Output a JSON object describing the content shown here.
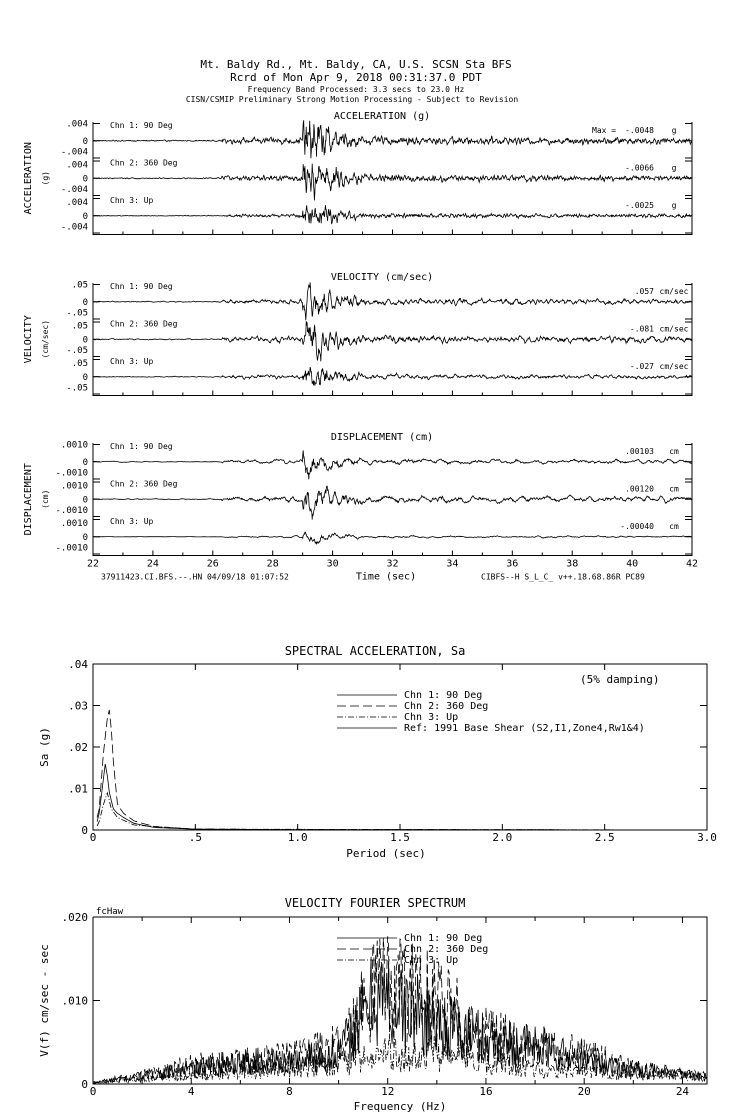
{
  "header": {
    "line1": "Mt. Baldy Rd., Mt. Baldy, CA, U.S.     SCSN Sta BFS",
    "line2": "Rcrd of Mon Apr  9, 2018 00:31:37.0 PDT",
    "line3": "Frequency Band Processed: 3.3 secs to 23.0 Hz",
    "line4": "CISN/CSMIP Preliminary Strong Motion Processing - Subject to Revision"
  },
  "chart_data": [
    {
      "type": "line",
      "title": "ACCELERATION (g)",
      "ylabel": "ACCELERATION",
      "yunit": "(g)",
      "yticks": [
        ".004",
        "0",
        "-.004"
      ],
      "ytick_value": 0.004,
      "unit": "g",
      "max_prefix": "Max =",
      "smooth": 1,
      "channels": [
        {
          "label": "Chn 1: 90 Deg",
          "max": "-.0048",
          "peak": -0.0048
        },
        {
          "label": "Chn 2: 360 Deg",
          "max": "-.0066",
          "peak": -0.0066
        },
        {
          "label": "Chn 3: Up",
          "max": "-.0025",
          "peak": -0.0025
        }
      ]
    },
    {
      "type": "line",
      "title": "VELOCITY (cm/sec)",
      "ylabel": "VELOCITY",
      "yunit": "(cm/sec)",
      "yticks": [
        ".05",
        "0",
        "-.05"
      ],
      "ytick_value": 0.05,
      "unit": "cm/sec",
      "smooth": 2,
      "channels": [
        {
          "label": "Chn 1: 90 Deg",
          "max": ".057",
          "peak": 0.057
        },
        {
          "label": "Chn 2: 360 Deg",
          "max": "-.081",
          "peak": -0.081
        },
        {
          "label": "Chn 3: Up",
          "max": "-.027",
          "peak": -0.027
        }
      ]
    },
    {
      "type": "line",
      "title": "DISPLACEMENT (cm)",
      "ylabel": "DISPLACEMENT",
      "yunit": "(cm)",
      "yticks": [
        ".0010",
        "0",
        "-.0010"
      ],
      "ytick_value": 0.001,
      "unit": "cm",
      "smooth": 5,
      "channels": [
        {
          "label": "Chn 1: 90 Deg",
          "max": ".00103",
          "peak": 0.00103
        },
        {
          "label": "Chn 2: 360 Deg",
          "max": ".00120",
          "peak": 0.0012
        },
        {
          "label": "Chn 3: Up",
          "max": "-.00040",
          "peak": -0.0004
        }
      ],
      "xlim": [
        22,
        42
      ],
      "xticks": [
        "22",
        "24",
        "26",
        "28",
        "30",
        "32",
        "34",
        "36",
        "38",
        "40",
        "42"
      ],
      "xlabel": "Time (sec)",
      "footer_left": "37911423.CI.BFS.--.HN 04/09/18 01:07:52",
      "footer_right": "CIBFS--H  S_L_C_  v++.18.68.86R PC89"
    },
    {
      "type": "line",
      "title": "SPECTRAL ACCELERATION, Sa",
      "note": "(5% damping)",
      "xlabel": "Period (sec)",
      "ylabel": "Sa (g)",
      "xlim": [
        0,
        3.0
      ],
      "ylim": [
        0,
        0.04
      ],
      "xticks": [
        "0",
        ".5",
        "1.0",
        "1.5",
        "2.0",
        "2.5",
        "3.0"
      ],
      "yticks": [
        ".04",
        ".03",
        ".02",
        ".01",
        "0"
      ],
      "legend_position": "top-center",
      "series": [
        {
          "name": "Chn 1: 90 Deg",
          "style": "solid",
          "points": [
            [
              0.02,
              0.002
            ],
            [
              0.03,
              0.004
            ],
            [
              0.05,
              0.012
            ],
            [
              0.06,
              0.016
            ],
            [
              0.07,
              0.013
            ],
            [
              0.08,
              0.009
            ],
            [
              0.1,
              0.005
            ],
            [
              0.12,
              0.004
            ],
            [
              0.15,
              0.003
            ],
            [
              0.2,
              0.0016
            ],
            [
              0.3,
              0.0006
            ],
            [
              0.5,
              0.0002
            ],
            [
              1.0,
              0.0001
            ],
            [
              3.0,
              0.0
            ]
          ]
        },
        {
          "name": "Chn 2: 360 Deg",
          "style": "dashed",
          "points": [
            [
              0.02,
              0.003
            ],
            [
              0.03,
              0.005
            ],
            [
              0.05,
              0.018
            ],
            [
              0.07,
              0.027
            ],
            [
              0.08,
              0.029
            ],
            [
              0.09,
              0.024
            ],
            [
              0.1,
              0.016
            ],
            [
              0.12,
              0.006
            ],
            [
              0.15,
              0.004
            ],
            [
              0.2,
              0.0022
            ],
            [
              0.3,
              0.0008
            ],
            [
              0.5,
              0.0002
            ],
            [
              1.0,
              0.0001
            ],
            [
              3.0,
              0.0
            ]
          ]
        },
        {
          "name": "Chn 3: Up",
          "style": "dashdot",
          "points": [
            [
              0.02,
              0.001
            ],
            [
              0.03,
              0.002
            ],
            [
              0.05,
              0.006
            ],
            [
              0.07,
              0.009
            ],
            [
              0.09,
              0.005
            ],
            [
              0.12,
              0.003
            ],
            [
              0.2,
              0.0012
            ],
            [
              0.5,
              0.0002
            ],
            [
              3.0,
              0.0
            ]
          ]
        },
        {
          "name": "Ref: 1991 Base Shear (S2,I1,Zone4,Rw1&4)",
          "style": "solid",
          "points": []
        }
      ]
    },
    {
      "type": "line",
      "title": "VELOCITY FOURIER SPECTRUM",
      "corner_label": "fcHaw",
      "xlabel": "Frequency (Hz)",
      "ylabel": "V(f)   cm/sec - sec",
      "xlim": [
        0,
        25
      ],
      "ylim": [
        0,
        0.02
      ],
      "xticks": [
        "0",
        "4",
        "8",
        "12",
        "16",
        "20",
        "24"
      ],
      "yticks": [
        ".020",
        ".010",
        "0"
      ],
      "legend_position": "top-center",
      "series": [
        {
          "name": "Chn 1: 90 Deg",
          "style": "solid",
          "points": [
            [
              0,
              0.0002
            ],
            [
              2,
              0.001
            ],
            [
              4,
              0.002
            ],
            [
              6,
              0.003
            ],
            [
              8,
              0.003
            ],
            [
              10,
              0.004
            ],
            [
              11,
              0.009
            ],
            [
              11.5,
              0.012
            ],
            [
              12.5,
              0.01
            ],
            [
              13.5,
              0.009
            ],
            [
              15,
              0.007
            ],
            [
              16,
              0.006
            ],
            [
              18,
              0.005
            ],
            [
              20,
              0.003
            ],
            [
              22,
              0.002
            ],
            [
              25,
              0.001
            ]
          ]
        },
        {
          "name": "Chn 2: 360 Deg",
          "style": "dashed",
          "points": [
            [
              0,
              0.0002
            ],
            [
              2,
              0.0012
            ],
            [
              4,
              0.0025
            ],
            [
              6,
              0.003
            ],
            [
              8,
              0.0035
            ],
            [
              10,
              0.005
            ],
            [
              11,
              0.01
            ],
            [
              11.5,
              0.013
            ],
            [
              13,
              0.012
            ],
            [
              14.5,
              0.012
            ],
            [
              15,
              0.007
            ],
            [
              16.5,
              0.006
            ],
            [
              18,
              0.005
            ],
            [
              20,
              0.004
            ],
            [
              22,
              0.002
            ],
            [
              25,
              0.001
            ]
          ]
        },
        {
          "name": "Chn 3: Up",
          "style": "dashdot",
          "points": [
            [
              0,
              0.0001
            ],
            [
              2,
              0.0006
            ],
            [
              4,
              0.0012
            ],
            [
              6,
              0.0015
            ],
            [
              8,
              0.002
            ],
            [
              10,
              0.0025
            ],
            [
              12,
              0.004
            ],
            [
              14,
              0.004
            ],
            [
              16,
              0.003
            ],
            [
              18,
              0.002
            ],
            [
              20,
              0.0015
            ],
            [
              25,
              0.0008
            ]
          ]
        }
      ]
    }
  ]
}
